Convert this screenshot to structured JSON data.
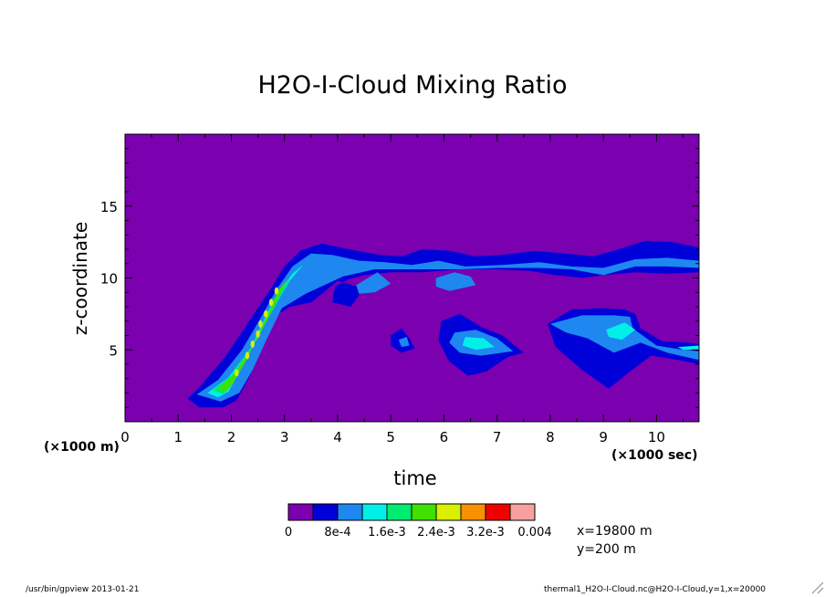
{
  "title": "H2O-I-Cloud Mixing Ratio",
  "chart_data": {
    "type": "heatmap",
    "title": "H2O-I-Cloud Mixing Ratio",
    "xlabel": "time",
    "ylabel": "z-coordinate",
    "x_unit_label": "(×1000 sec)",
    "x_axis_note": "(×1000 m)",
    "xlim": [
      0,
      10.8
    ],
    "ylim": [
      0,
      20
    ],
    "x_ticks": [
      "0",
      "1",
      "2",
      "3",
      "4",
      "5",
      "6",
      "7",
      "8",
      "9",
      "10"
    ],
    "y_ticks": [
      "5",
      "10",
      "15"
    ],
    "background_color": "#7a00b0",
    "levels": [
      "0",
      "8e-4",
      "1.6e-3",
      "2.4e-3",
      "3.2e-3",
      "0.004"
    ],
    "level_colors": [
      "#7a00b0",
      "#0000d8",
      "#1e88f0",
      "#00f0e8",
      "#00ec70",
      "#40e000",
      "#d8f000",
      "#f89000",
      "#f00000",
      "#f8a0a0"
    ],
    "fields": [
      {
        "level": 1,
        "points": [
          [
            1.18,
            1.6
          ],
          [
            1.45,
            2.6
          ],
          [
            1.9,
            4.6
          ],
          [
            2.3,
            6.8
          ],
          [
            2.7,
            9.0
          ],
          [
            3.0,
            10.8
          ],
          [
            3.3,
            11.9
          ],
          [
            3.7,
            12.4
          ],
          [
            4.2,
            12.0
          ],
          [
            4.8,
            11.6
          ],
          [
            5.2,
            11.5
          ],
          [
            5.6,
            12.0
          ],
          [
            6.1,
            11.9
          ],
          [
            6.6,
            11.5
          ],
          [
            7.1,
            11.6
          ],
          [
            7.7,
            11.9
          ],
          [
            8.3,
            11.7
          ],
          [
            8.8,
            11.5
          ],
          [
            9.2,
            11.9
          ],
          [
            9.8,
            12.6
          ],
          [
            10.3,
            12.5
          ],
          [
            10.8,
            12.1
          ],
          [
            10.8,
            10.4
          ],
          [
            10.2,
            10.3
          ],
          [
            9.6,
            10.4
          ],
          [
            9.0,
            10.2
          ],
          [
            8.6,
            10.0
          ],
          [
            8.1,
            10.2
          ],
          [
            7.6,
            10.5
          ],
          [
            7.0,
            10.6
          ],
          [
            6.3,
            10.6
          ],
          [
            5.6,
            10.4
          ],
          [
            5.0,
            10.4
          ],
          [
            4.5,
            10.2
          ],
          [
            4.2,
            9.9
          ],
          [
            3.95,
            9.4
          ],
          [
            3.9,
            8.3
          ],
          [
            4.25,
            8.0
          ],
          [
            4.5,
            9.3
          ],
          [
            4.0,
            9.8
          ],
          [
            3.5,
            8.3
          ],
          [
            3.1,
            8.0
          ],
          [
            2.8,
            7.3
          ],
          [
            2.6,
            5.3
          ],
          [
            2.35,
            3.2
          ],
          [
            2.1,
            1.5
          ],
          [
            1.85,
            1.0
          ],
          [
            1.4,
            1.0
          ]
        ]
      },
      {
        "level": 1,
        "points": [
          [
            5.0,
            6.0
          ],
          [
            5.2,
            6.5
          ],
          [
            5.35,
            5.8
          ],
          [
            5.45,
            5.1
          ],
          [
            5.2,
            4.8
          ],
          [
            5.0,
            5.3
          ]
        ]
      },
      {
        "level": 1,
        "points": [
          [
            5.95,
            7.0
          ],
          [
            6.3,
            7.5
          ],
          [
            6.7,
            6.6
          ],
          [
            7.1,
            6.0
          ],
          [
            7.5,
            4.8
          ],
          [
            7.2,
            4.5
          ],
          [
            6.8,
            3.5
          ],
          [
            6.45,
            3.2
          ],
          [
            6.1,
            4.2
          ],
          [
            5.9,
            5.6
          ]
        ]
      },
      {
        "level": 1,
        "points": [
          [
            7.95,
            6.8
          ],
          [
            8.4,
            7.8
          ],
          [
            9.0,
            7.9
          ],
          [
            9.4,
            7.8
          ],
          [
            9.6,
            7.5
          ],
          [
            9.7,
            6.5
          ],
          [
            10.1,
            5.6
          ],
          [
            10.6,
            5.5
          ],
          [
            10.8,
            5.4
          ],
          [
            10.8,
            4.0
          ],
          [
            10.4,
            4.3
          ],
          [
            9.9,
            4.6
          ],
          [
            9.5,
            3.5
          ],
          [
            9.1,
            2.3
          ],
          [
            8.6,
            3.6
          ],
          [
            8.1,
            5.2
          ]
        ]
      },
      {
        "level": 2,
        "points": [
          [
            1.35,
            1.9
          ],
          [
            1.75,
            2.9
          ],
          [
            2.2,
            5.0
          ],
          [
            2.55,
            7.2
          ],
          [
            2.85,
            9.2
          ],
          [
            3.15,
            10.8
          ],
          [
            3.5,
            11.7
          ],
          [
            3.9,
            11.6
          ],
          [
            4.4,
            11.2
          ],
          [
            4.9,
            11.1
          ],
          [
            5.4,
            10.9
          ],
          [
            5.9,
            11.2
          ],
          [
            6.4,
            10.8
          ],
          [
            7.1,
            10.9
          ],
          [
            7.8,
            11.1
          ],
          [
            8.4,
            10.8
          ],
          [
            9.0,
            10.7
          ],
          [
            9.6,
            11.3
          ],
          [
            10.2,
            11.4
          ],
          [
            10.8,
            11.2
          ],
          [
            10.8,
            10.7
          ],
          [
            10.2,
            10.8
          ],
          [
            9.6,
            10.8
          ],
          [
            9.0,
            10.2
          ],
          [
            8.4,
            10.6
          ],
          [
            7.8,
            10.7
          ],
          [
            7.0,
            10.7
          ],
          [
            6.3,
            10.6
          ],
          [
            5.5,
            10.6
          ],
          [
            4.7,
            10.6
          ],
          [
            4.1,
            10.1
          ],
          [
            3.4,
            8.9
          ],
          [
            2.95,
            7.9
          ],
          [
            2.65,
            5.6
          ],
          [
            2.4,
            3.6
          ],
          [
            2.15,
            2.0
          ],
          [
            1.8,
            1.4
          ]
        ]
      },
      {
        "level": 2,
        "points": [
          [
            4.35,
            9.5
          ],
          [
            4.75,
            10.4
          ],
          [
            5.0,
            9.6
          ],
          [
            4.7,
            9.0
          ],
          [
            4.4,
            8.9
          ]
        ]
      },
      {
        "level": 2,
        "points": [
          [
            5.85,
            10.0
          ],
          [
            6.2,
            10.4
          ],
          [
            6.5,
            10.1
          ],
          [
            6.6,
            9.5
          ],
          [
            6.1,
            9.1
          ],
          [
            5.85,
            9.4
          ]
        ]
      },
      {
        "level": 2,
        "points": [
          [
            5.15,
            5.7
          ],
          [
            5.3,
            5.9
          ],
          [
            5.35,
            5.3
          ],
          [
            5.2,
            5.2
          ]
        ]
      },
      {
        "level": 2,
        "points": [
          [
            6.2,
            6.2
          ],
          [
            6.6,
            6.4
          ],
          [
            7.0,
            5.8
          ],
          [
            7.3,
            4.9
          ],
          [
            6.7,
            4.6
          ],
          [
            6.3,
            4.8
          ],
          [
            6.1,
            5.5
          ]
        ]
      },
      {
        "level": 2,
        "points": [
          [
            8.0,
            6.8
          ],
          [
            8.6,
            7.4
          ],
          [
            9.2,
            7.4
          ],
          [
            9.5,
            7.3
          ],
          [
            9.55,
            6.5
          ],
          [
            10.0,
            5.3
          ],
          [
            10.5,
            5.0
          ],
          [
            10.8,
            4.9
          ],
          [
            10.8,
            4.3
          ],
          [
            10.2,
            4.8
          ],
          [
            9.7,
            5.5
          ],
          [
            9.2,
            4.8
          ],
          [
            8.7,
            5.8
          ],
          [
            8.3,
            6.2
          ]
        ]
      },
      {
        "level": 3,
        "points": [
          [
            1.55,
            2.0
          ],
          [
            1.95,
            3.1
          ],
          [
            2.4,
            5.3
          ],
          [
            2.75,
            7.6
          ],
          [
            3.1,
            9.8
          ],
          [
            3.35,
            10.9
          ],
          [
            3.15,
            10.3
          ],
          [
            2.8,
            8.5
          ],
          [
            2.5,
            6.2
          ],
          [
            2.2,
            3.8
          ],
          [
            1.95,
            2.1
          ],
          [
            1.75,
            1.7
          ]
        ]
      },
      {
        "level": 3,
        "points": [
          [
            6.4,
            5.9
          ],
          [
            6.75,
            5.8
          ],
          [
            6.95,
            5.2
          ],
          [
            6.6,
            5.0
          ],
          [
            6.35,
            5.3
          ]
        ]
      },
      {
        "level": 3,
        "points": [
          [
            9.05,
            6.4
          ],
          [
            9.4,
            6.9
          ],
          [
            9.6,
            6.4
          ],
          [
            9.35,
            5.7
          ],
          [
            9.1,
            5.9
          ]
        ]
      },
      {
        "level": 3,
        "points": [
          [
            10.4,
            5.2
          ],
          [
            10.8,
            5.3
          ],
          [
            10.8,
            5.0
          ],
          [
            10.5,
            5.0
          ]
        ]
      },
      {
        "level": 4,
        "points": [
          [
            1.65,
            2.2
          ],
          [
            2.0,
            3.2
          ],
          [
            2.45,
            5.6
          ],
          [
            2.8,
            7.9
          ],
          [
            3.1,
            9.9
          ],
          [
            3.15,
            10.2
          ],
          [
            2.85,
            8.8
          ],
          [
            2.55,
            6.4
          ],
          [
            2.25,
            4.1
          ],
          [
            2.0,
            2.5
          ],
          [
            1.85,
            1.9
          ]
        ]
      },
      {
        "level": 5,
        "points": [
          [
            1.75,
            2.3
          ],
          [
            2.05,
            3.3
          ],
          [
            2.5,
            5.8
          ],
          [
            2.8,
            8.0
          ],
          [
            3.05,
            9.9
          ],
          [
            2.9,
            9.2
          ],
          [
            2.6,
            6.8
          ],
          [
            2.3,
            4.4
          ],
          [
            2.05,
            2.8
          ],
          [
            1.9,
            2.1
          ]
        ]
      }
    ],
    "peaks": [
      [
        2.1,
        3.4
      ],
      [
        2.3,
        4.6
      ],
      [
        2.4,
        5.4
      ],
      [
        2.5,
        6.1
      ],
      [
        2.55,
        6.8
      ],
      [
        2.65,
        7.5
      ],
      [
        2.75,
        8.3
      ],
      [
        2.85,
        9.1
      ]
    ]
  },
  "info": {
    "x": "x=19800 m",
    "y": "y=200 m"
  },
  "footer": {
    "left": "/usr/bin/gpview  2013-01-21",
    "right": "thermal1_H2O-I-Cloud.nc@H2O-I-Cloud,y=1,x=20000"
  }
}
